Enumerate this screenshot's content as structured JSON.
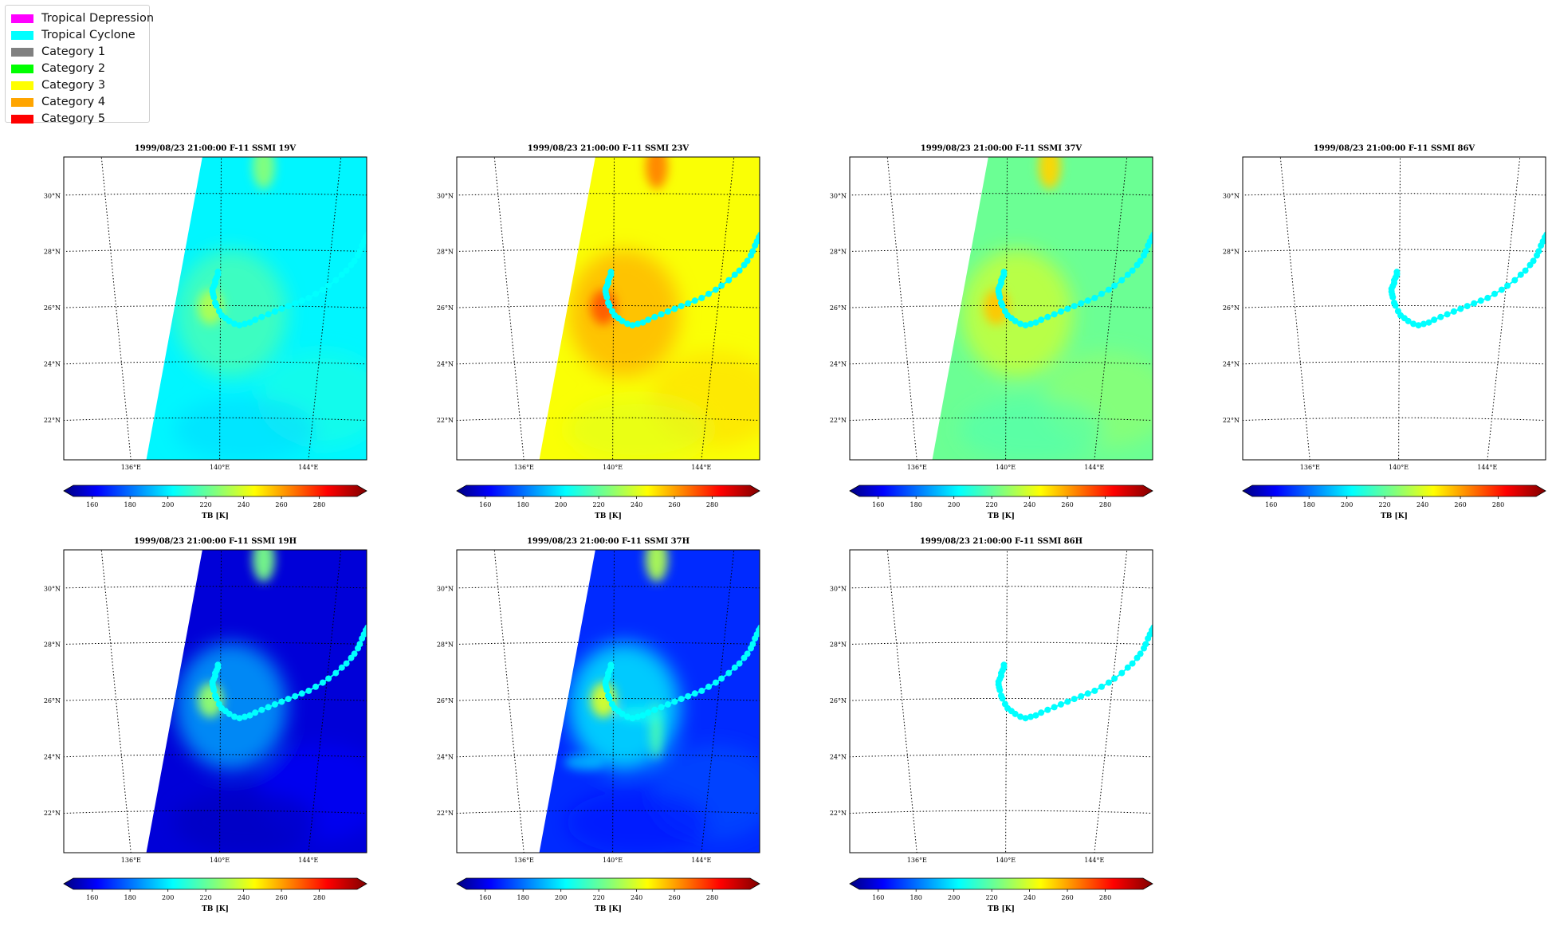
{
  "legend": {
    "items": [
      {
        "label": "Tropical Depression",
        "color": "#ff00ff"
      },
      {
        "label": "Tropical Cyclone",
        "color": "#00ffff"
      },
      {
        "label": "Category 1",
        "color": "#808080"
      },
      {
        "label": "Category 2",
        "color": "#00ff00"
      },
      {
        "label": "Category 3",
        "color": "#ffff00"
      },
      {
        "label": "Category 4",
        "color": "#ffa500"
      },
      {
        "label": "Category 5",
        "color": "#ff0000"
      }
    ]
  },
  "map": {
    "lat_labels": [
      "30°N",
      "28°N",
      "26°N",
      "24°N",
      "22°N"
    ],
    "lon_labels": [
      "136°E",
      "140°E",
      "144°E"
    ],
    "colorbar_ticks": [
      "160",
      "180",
      "200",
      "220",
      "240",
      "260",
      "280"
    ],
    "colorbar_label": "TB [K]",
    "colorbar_range": [
      150,
      300
    ],
    "track_color": "#00ffff",
    "panels": [
      {
        "title": "1999/08/23 21:00:00  F-11 SSMI 19V",
        "field": {
          "bg": 205,
          "center": 232,
          "north": 226,
          "streak": 0
        }
      },
      {
        "title": "1999/08/23 21:00:00  F-11 SSMI 23V",
        "field": {
          "bg": 243,
          "center": 268,
          "north": 262,
          "streak": 0
        }
      },
      {
        "title": "1999/08/23 21:00:00  F-11 SSMI 37V",
        "field": {
          "bg": 222,
          "center": 252,
          "north": 250,
          "streak": 0
        }
      },
      {
        "title": "1999/08/23 21:00:00  F-11 SSMI 86V",
        "field": null
      },
      {
        "title": "1999/08/23 21:00:00  F-11 SSMI 19H",
        "field": {
          "bg": 163,
          "center": 228,
          "north": 224,
          "streak": 0
        }
      },
      {
        "title": "1999/08/23 21:00:00  F-11 SSMI 37H",
        "field": {
          "bg": 175,
          "center": 238,
          "north": 232,
          "streak": 1
        }
      },
      {
        "title": "1999/08/23 21:00:00  F-11 SSMI 86H",
        "field": null
      }
    ],
    "track": [
      [
        139.9,
        27.2
      ],
      [
        139.9,
        27.1
      ],
      [
        139.85,
        27.0
      ],
      [
        139.8,
        26.9
      ],
      [
        139.8,
        26.8
      ],
      [
        139.75,
        26.7
      ],
      [
        139.7,
        26.6
      ],
      [
        139.7,
        26.5
      ],
      [
        139.72,
        26.4
      ],
      [
        139.75,
        26.3
      ],
      [
        139.8,
        26.1
      ],
      [
        139.85,
        26.0
      ],
      [
        139.95,
        25.8
      ],
      [
        140.05,
        25.65
      ],
      [
        140.2,
        25.55
      ],
      [
        140.35,
        25.45
      ],
      [
        140.55,
        25.35
      ],
      [
        140.75,
        25.3
      ],
      [
        140.95,
        25.35
      ],
      [
        141.15,
        25.4
      ],
      [
        141.35,
        25.5
      ],
      [
        141.6,
        25.6
      ],
      [
        141.85,
        25.7
      ],
      [
        142.1,
        25.8
      ],
      [
        142.35,
        25.9
      ],
      [
        142.6,
        26.0
      ],
      [
        142.85,
        26.1
      ],
      [
        143.1,
        26.2
      ],
      [
        143.35,
        26.3
      ],
      [
        143.6,
        26.45
      ],
      [
        143.85,
        26.6
      ],
      [
        144.05,
        26.75
      ],
      [
        144.3,
        26.95
      ],
      [
        144.5,
        27.15
      ],
      [
        144.65,
        27.3
      ],
      [
        144.8,
        27.5
      ],
      [
        144.9,
        27.65
      ],
      [
        145.0,
        27.85
      ],
      [
        145.05,
        28.0
      ],
      [
        145.1,
        28.2
      ],
      [
        145.15,
        28.35
      ],
      [
        145.2,
        28.5
      ],
      [
        145.25,
        28.6
      ]
    ]
  }
}
